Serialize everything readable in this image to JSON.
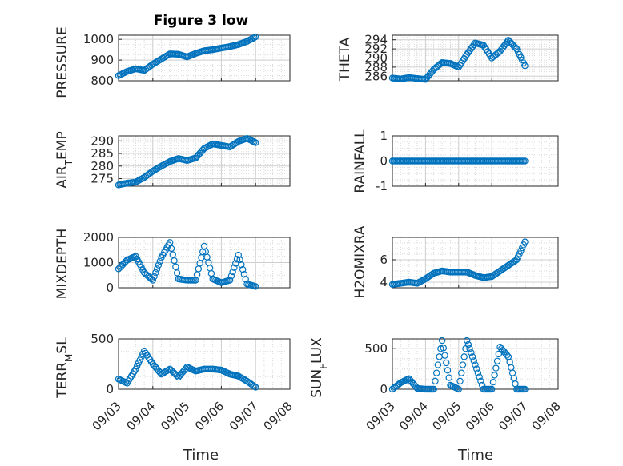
{
  "title": "Figure 3 low",
  "xlabel": "Time",
  "x_ticks": [
    "09/03",
    "09/04",
    "09/05",
    "09/06",
    "09/07",
    "09/08"
  ],
  "colors": {
    "marker": "#0072BD",
    "axis": "#262626",
    "grid": "#d9d9d9"
  },
  "chart_data": [
    {
      "type": "scatter",
      "ylabel": "PRESSURE",
      "ylim": [
        800,
        1020
      ],
      "yticks": [
        "800",
        "900",
        "1000"
      ],
      "grid": true,
      "x": [
        "09/03",
        "09/03 06:00",
        "09/03 12:00",
        "09/03 18:00",
        "09/04",
        "09/04 06:00",
        "09/04 12:00",
        "09/04 18:00",
        "09/05",
        "09/05 06:00",
        "09/05 12:00",
        "09/05 18:00",
        "09/06",
        "09/06 06:00",
        "09/06 12:00",
        "09/06 18:00",
        "09/07"
      ],
      "values": [
        825,
        845,
        858,
        850,
        880,
        905,
        930,
        928,
        915,
        932,
        945,
        950,
        958,
        965,
        975,
        990,
        1012
      ]
    },
    {
      "type": "scatter",
      "ylabel": "THETA",
      "ylim": [
        285,
        295
      ],
      "yticks": [
        "286",
        "288",
        "290",
        "292",
        "294"
      ],
      "grid": true,
      "x": [
        "09/03",
        "09/03 06:00",
        "09/03 12:00",
        "09/03 18:00",
        "09/04",
        "09/04 06:00",
        "09/04 12:00",
        "09/04 18:00",
        "09/05",
        "09/05 06:00",
        "09/05 12:00",
        "09/05 18:00",
        "09/06",
        "09/06 06:00",
        "09/06 12:00",
        "09/06 18:00",
        "09/07"
      ],
      "values": [
        285.6,
        285.4,
        285.7,
        285.5,
        285.3,
        287.5,
        289.0,
        288.8,
        288.0,
        290.8,
        293.3,
        292.8,
        290.0,
        291.5,
        293.9,
        292.0,
        288.3
      ]
    },
    {
      "type": "scatter",
      "ylabel": "AIR_TEMP",
      "ylim": [
        272,
        292
      ],
      "yticks": [
        "275",
        "280",
        "285",
        "290"
      ],
      "grid": true,
      "x": [
        "09/03",
        "09/03 06:00",
        "09/03 12:00",
        "09/03 18:00",
        "09/04",
        "09/04 06:00",
        "09/04 12:00",
        "09/04 18:00",
        "09/05",
        "09/05 06:00",
        "09/05 12:00",
        "09/05 18:00",
        "09/06",
        "09/06 06:00",
        "09/06 12:00",
        "09/06 18:00",
        "09/07"
      ],
      "values": [
        272.5,
        273.2,
        273.6,
        275.5,
        278.0,
        280.0,
        281.8,
        283.0,
        282.2,
        283.2,
        287.0,
        288.8,
        288.2,
        287.6,
        289.8,
        291.0,
        289.3
      ]
    },
    {
      "type": "scatter",
      "ylabel": "RAINFALL",
      "ylim": [
        -1,
        1
      ],
      "yticks": [
        "-1",
        "0",
        "1"
      ],
      "grid": true,
      "x": [
        "09/03",
        "09/03 06:00",
        "09/03 12:00",
        "09/03 18:00",
        "09/04",
        "09/04 06:00",
        "09/04 12:00",
        "09/04 18:00",
        "09/05",
        "09/05 06:00",
        "09/05 12:00",
        "09/05 18:00",
        "09/06",
        "09/06 06:00",
        "09/06 12:00",
        "09/06 18:00",
        "09/07"
      ],
      "values": [
        0,
        0,
        0,
        0,
        0,
        0,
        0,
        0,
        0,
        0,
        0,
        0,
        0,
        0,
        0,
        0,
        0
      ]
    },
    {
      "type": "scatter",
      "ylabel": "MIXDEPTH",
      "ylim": [
        0,
        2000
      ],
      "yticks": [
        "0",
        "1000",
        "2000"
      ],
      "grid": true,
      "x": [
        "09/03",
        "09/03 06:00",
        "09/03 12:00",
        "09/03 18:00",
        "09/04",
        "09/04 06:00",
        "09/04 12:00",
        "09/04 18:00",
        "09/05",
        "09/05 06:00",
        "09/05 12:00",
        "09/05 18:00",
        "09/06",
        "09/06 06:00",
        "09/06 12:00",
        "09/06 18:00",
        "09/07"
      ],
      "values": [
        750,
        1100,
        1250,
        600,
        300,
        1200,
        1800,
        350,
        300,
        300,
        1650,
        350,
        200,
        300,
        1300,
        150,
        50
      ]
    },
    {
      "type": "scatter",
      "ylabel": "H2OMIXRA",
      "ylim": [
        3.5,
        8
      ],
      "yticks": [
        "4",
        "6"
      ],
      "grid": true,
      "x": [
        "09/03",
        "09/03 06:00",
        "09/03 12:00",
        "09/03 18:00",
        "09/04",
        "09/04 06:00",
        "09/04 12:00",
        "09/04 18:00",
        "09/05",
        "09/05 06:00",
        "09/05 12:00",
        "09/05 18:00",
        "09/06",
        "09/06 06:00",
        "09/06 12:00",
        "09/06 18:00",
        "09/07"
      ],
      "values": [
        3.8,
        3.9,
        4.0,
        3.9,
        4.3,
        4.8,
        5.0,
        4.9,
        4.9,
        4.9,
        4.6,
        4.4,
        4.5,
        5.0,
        5.5,
        6.0,
        7.6
      ]
    },
    {
      "type": "scatter",
      "ylabel": "TERR_MSL",
      "ylim": [
        0,
        500
      ],
      "yticks": [
        "0",
        "500"
      ],
      "grid": true,
      "x": [
        "09/03",
        "09/03 06:00",
        "09/03 12:00",
        "09/03 18:00",
        "09/04",
        "09/04 06:00",
        "09/04 12:00",
        "09/04 18:00",
        "09/05",
        "09/05 06:00",
        "09/05 12:00",
        "09/05 18:00",
        "09/06",
        "09/06 06:00",
        "09/06 12:00",
        "09/06 18:00",
        "09/07"
      ],
      "values": [
        100,
        60,
        200,
        380,
        250,
        150,
        200,
        120,
        220,
        180,
        200,
        200,
        190,
        150,
        130,
        80,
        20
      ]
    },
    {
      "type": "scatter",
      "ylabel": "SUN_FLUX",
      "ylim": [
        0,
        620
      ],
      "yticks": [
        "0",
        "500"
      ],
      "grid": true,
      "x": [
        "09/03",
        "09/03 06:00",
        "09/03 12:00",
        "09/03 18:00",
        "09/04",
        "09/04 06:00",
        "09/04 12:00",
        "09/04 18:00",
        "09/05",
        "09/05 06:00",
        "09/05 12:00",
        "09/05 18:00",
        "09/06",
        "09/06 06:00",
        "09/06 12:00",
        "09/06 18:00",
        "09/07"
      ],
      "values": [
        0,
        80,
        130,
        10,
        0,
        0,
        600,
        50,
        0,
        600,
        300,
        0,
        0,
        520,
        400,
        0,
        0
      ]
    }
  ]
}
